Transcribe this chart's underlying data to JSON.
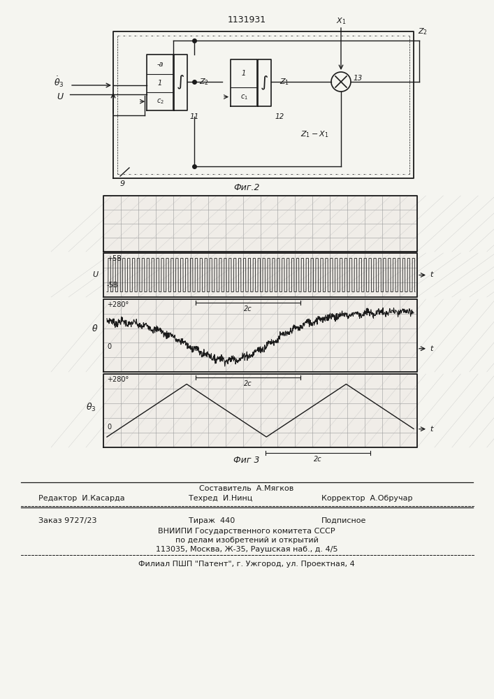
{
  "patent_number": "1131931",
  "fig2_label": "Фиг.2",
  "fig3_label": "Фиг 3",
  "background_color": "#f5f5f0",
  "line_color": "#1a1a1a",
  "grid_color": "#999999",
  "footer_line1": "Составитель  А.Мягков",
  "footer_line2_left": "Редактор  И.Касарда",
  "footer_line2_mid": "Техред  И.Нинц",
  "footer_line2_right": "Корректор  А.Обручар",
  "footer_line3_left": "Заказ 9727/23",
  "footer_line3_mid": "Тираж  440",
  "footer_line3_right": "Подписное",
  "footer_line4": "ВНИИПИ Государственного комитета СССР",
  "footer_line5": "по делам изобретений и открытий",
  "footer_line6": "113035, Москва, Ж-35, Раушская наб., д. 4/5",
  "footer_line7": "Филиал ПШП \"Патент\", г. Ужгород, ул. Проектная, 4"
}
